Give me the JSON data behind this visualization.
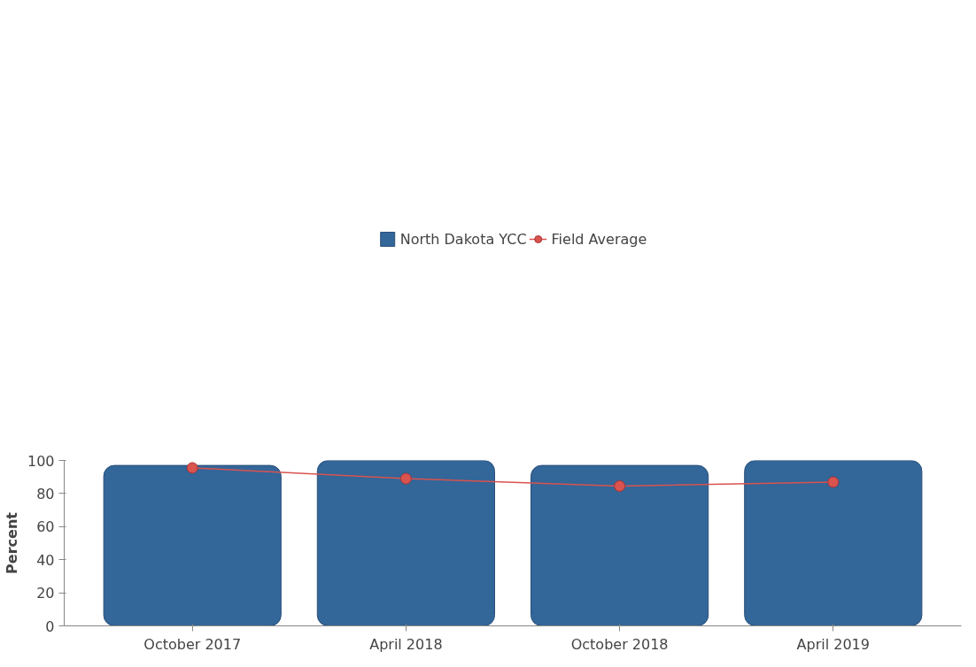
{
  "chart_data": {
    "type": "bar",
    "ylabel": "Percent",
    "categories": [
      "October 2017",
      "April 2018",
      "October 2018",
      "April 2019"
    ],
    "series": [
      {
        "name": "North Dakota YCC",
        "color": "#336699",
        "values": [
          97,
          100,
          97,
          100
        ]
      },
      {
        "name": "Field Average",
        "type": "line",
        "color": "#d9534f",
        "values": [
          95.5,
          89,
          84.5,
          86.9
        ]
      }
    ],
    "ylim": [
      0,
      100
    ],
    "yticks": [
      0,
      20,
      40,
      60,
      80,
      100
    ],
    "grid": false,
    "legend": "top",
    "marker": "circle"
  }
}
